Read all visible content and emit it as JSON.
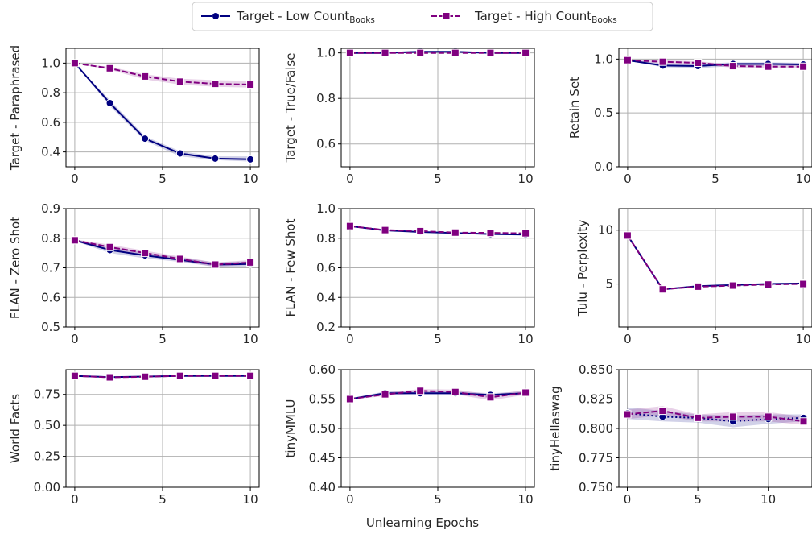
{
  "legend": {
    "items": [
      {
        "name": "Target - Low Count",
        "subscript": "Books",
        "color": "#000080",
        "marker": "circle",
        "dash": "solid"
      },
      {
        "name": "Target - High Count",
        "subscript": "Books",
        "color": "#800080",
        "marker": "square",
        "dash": "dashed"
      }
    ]
  },
  "shared_xlabel": "Unlearning Epochs",
  "chart_data": [
    {
      "type": "line",
      "ylabel": "Target - Paraphrased",
      "xlim": [
        -0.5,
        10.5
      ],
      "ylim": [
        0.3,
        1.1
      ],
      "xticks": [
        0,
        5,
        10
      ],
      "yticks": [
        0.4,
        0.6,
        0.8,
        1.0
      ],
      "ytick_labels": [
        "0.4",
        "0.6",
        "0.8",
        "1.0"
      ],
      "grid": true,
      "x": [
        0,
        2,
        4,
        6,
        8,
        10
      ],
      "series": [
        {
          "name": "Target - Low Count",
          "values": [
            1.0,
            0.73,
            0.49,
            0.39,
            0.355,
            0.35
          ],
          "band": [
            [
              1.0,
              1.0
            ],
            [
              0.71,
              0.75
            ],
            [
              0.475,
              0.505
            ],
            [
              0.37,
              0.405
            ],
            [
              0.345,
              0.37
            ],
            [
              0.335,
              0.37
            ]
          ]
        },
        {
          "name": "Target - High Count",
          "values": [
            1.0,
            0.965,
            0.91,
            0.875,
            0.86,
            0.855
          ],
          "band": [
            [
              1.0,
              1.0
            ],
            [
              0.955,
              0.975
            ],
            [
              0.89,
              0.925
            ],
            [
              0.855,
              0.895
            ],
            [
              0.84,
              0.885
            ],
            [
              0.835,
              0.88
            ]
          ]
        }
      ]
    },
    {
      "type": "line",
      "ylabel": "Target - True/False",
      "xlim": [
        -0.5,
        10.5
      ],
      "ylim": [
        0.5,
        1.02
      ],
      "xticks": [
        0,
        5,
        10
      ],
      "yticks": [
        0.6,
        0.8,
        1.0
      ],
      "ytick_labels": [
        "0.6",
        "0.8",
        "1.0"
      ],
      "grid": true,
      "x": [
        0,
        2,
        4,
        6,
        8,
        10
      ],
      "series": [
        {
          "name": "Target - Low Count",
          "values": [
            1.0,
            1.0,
            1.005,
            1.005,
            1.0,
            1.0
          ],
          "band": null
        },
        {
          "name": "Target - High Count",
          "values": [
            1.0,
            1.0,
            1.0,
            1.0,
            1.0,
            1.0
          ],
          "band": null
        }
      ]
    },
    {
      "type": "line",
      "ylabel": "Retain Set",
      "xlim": [
        -0.5,
        10.5
      ],
      "ylim": [
        0.0,
        1.1
      ],
      "xticks": [
        0,
        5,
        10
      ],
      "yticks": [
        0.0,
        0.5,
        1.0
      ],
      "ytick_labels": [
        "0.0",
        "0.5",
        "1.0"
      ],
      "grid": true,
      "x": [
        0,
        2,
        4,
        6,
        8,
        10
      ],
      "series": [
        {
          "name": "Target - Low Count",
          "values": [
            0.99,
            0.94,
            0.935,
            0.955,
            0.955,
            0.95
          ],
          "band": [
            [
              0.985,
              0.995
            ],
            [
              0.925,
              0.96
            ],
            [
              0.915,
              0.955
            ],
            [
              0.935,
              0.97
            ],
            [
              0.94,
              0.97
            ],
            [
              0.935,
              0.965
            ]
          ]
        },
        {
          "name": "Target - High Count",
          "values": [
            0.99,
            0.975,
            0.965,
            0.935,
            0.93,
            0.93
          ],
          "band": [
            [
              0.985,
              0.995
            ],
            [
              0.96,
              0.99
            ],
            [
              0.95,
              0.98
            ],
            [
              0.92,
              0.95
            ],
            [
              0.915,
              0.945
            ],
            [
              0.915,
              0.945
            ]
          ]
        }
      ]
    },
    {
      "type": "line",
      "ylabel": "FLAN - Zero Shot",
      "xlim": [
        -0.5,
        10.5
      ],
      "ylim": [
        0.5,
        0.9
      ],
      "xticks": [
        0,
        5,
        10
      ],
      "yticks": [
        0.5,
        0.6,
        0.7,
        0.8,
        0.9
      ],
      "ytick_labels": [
        "0.5",
        "0.6",
        "0.7",
        "0.8",
        "0.9"
      ],
      "grid": true,
      "x": [
        0,
        2,
        4,
        6,
        8,
        10
      ],
      "series": [
        {
          "name": "Target - Low Count",
          "values": [
            0.793,
            0.76,
            0.742,
            0.727,
            0.711,
            0.713
          ],
          "band": [
            [
              0.79,
              0.796
            ],
            [
              0.75,
              0.77
            ],
            [
              0.732,
              0.752
            ],
            [
              0.72,
              0.735
            ],
            [
              0.703,
              0.718
            ],
            [
              0.703,
              0.722
            ]
          ]
        },
        {
          "name": "Target - High Count",
          "values": [
            0.793,
            0.77,
            0.75,
            0.73,
            0.711,
            0.718
          ],
          "band": [
            [
              0.79,
              0.796
            ],
            [
              0.762,
              0.778
            ],
            [
              0.742,
              0.758
            ],
            [
              0.722,
              0.738
            ],
            [
              0.704,
              0.718
            ],
            [
              0.71,
              0.726
            ]
          ]
        }
      ]
    },
    {
      "type": "line",
      "ylabel": "FLAN - Few Shot",
      "xlim": [
        -0.5,
        10.5
      ],
      "ylim": [
        0.2,
        1.0
      ],
      "xticks": [
        0,
        5,
        10
      ],
      "yticks": [
        0.2,
        0.4,
        0.6,
        0.8,
        1.0
      ],
      "ytick_labels": [
        "0.2",
        "0.4",
        "0.6",
        "0.8",
        "1.0"
      ],
      "grid": true,
      "x": [
        0,
        2,
        4,
        6,
        8,
        10
      ],
      "series": [
        {
          "name": "Target - Low Count",
          "values": [
            0.882,
            0.853,
            0.842,
            0.835,
            0.828,
            0.825
          ],
          "band": null
        },
        {
          "name": "Target - High Count",
          "values": [
            0.882,
            0.855,
            0.848,
            0.838,
            0.836,
            0.833
          ],
          "band": null
        }
      ]
    },
    {
      "type": "line",
      "ylabel": "Tulu - Perplexity",
      "xlim": [
        -0.5,
        10.5
      ],
      "ylim": [
        1.0,
        12.0
      ],
      "xticks": [
        0,
        5,
        10
      ],
      "yticks": [
        5,
        10
      ],
      "ytick_labels": [
        "5",
        "10"
      ],
      "grid": true,
      "x": [
        0,
        2,
        4,
        6,
        8,
        10
      ],
      "series": [
        {
          "name": "Target - Low Count",
          "values": [
            9.5,
            4.5,
            4.8,
            4.9,
            5.0,
            5.05
          ],
          "band": null
        },
        {
          "name": "Target - High Count",
          "values": [
            9.5,
            4.5,
            4.75,
            4.85,
            4.95,
            5.0
          ],
          "band": null
        }
      ]
    },
    {
      "type": "line",
      "ylabel": "World Facts",
      "xlim": [
        -0.5,
        10.5
      ],
      "ylim": [
        0.0,
        0.95
      ],
      "xticks": [
        0,
        5,
        10
      ],
      "yticks": [
        0.0,
        0.25,
        0.5,
        0.75
      ],
      "ytick_labels": [
        "0.00",
        "0.25",
        "0.50",
        "0.75"
      ],
      "grid": true,
      "x": [
        0,
        2,
        4,
        6,
        8,
        10
      ],
      "series": [
        {
          "name": "Target - Low Count",
          "values": [
            0.9,
            0.89,
            0.895,
            0.9,
            0.9,
            0.9
          ],
          "band": null
        },
        {
          "name": "Target - High Count",
          "values": [
            0.9,
            0.888,
            0.893,
            0.9,
            0.9,
            0.9
          ],
          "band": null
        }
      ]
    },
    {
      "type": "line",
      "ylabel": "tinyMMLU",
      "xlim": [
        -0.5,
        10.5
      ],
      "ylim": [
        0.4,
        0.6
      ],
      "xticks": [
        0,
        5,
        10
      ],
      "yticks": [
        0.4,
        0.45,
        0.5,
        0.55,
        0.6
      ],
      "ytick_labels": [
        "0.40",
        "0.45",
        "0.50",
        "0.55",
        "0.60"
      ],
      "grid": true,
      "x": [
        0,
        2,
        4,
        6,
        8,
        10
      ],
      "series": [
        {
          "name": "Target - Low Count",
          "values": [
            0.55,
            0.56,
            0.56,
            0.56,
            0.557,
            0.56
          ],
          "band": [
            [
              0.549,
              0.551
            ],
            [
              0.557,
              0.563
            ],
            [
              0.557,
              0.563
            ],
            [
              0.557,
              0.563
            ],
            [
              0.554,
              0.56
            ],
            [
              0.557,
              0.563
            ]
          ]
        },
        {
          "name": "Target - High Count",
          "values": [
            0.55,
            0.558,
            0.564,
            0.562,
            0.553,
            0.561
          ],
          "band": [
            [
              0.549,
              0.551
            ],
            [
              0.555,
              0.561
            ],
            [
              0.56,
              0.567
            ],
            [
              0.558,
              0.566
            ],
            [
              0.548,
              0.558
            ],
            [
              0.557,
              0.565
            ]
          ]
        }
      ]
    },
    {
      "type": "line",
      "ylabel": "tinyHellaswag",
      "xlim": [
        -0.6,
        13.1
      ],
      "ylim": [
        0.75,
        0.85
      ],
      "xticks": [
        0,
        5,
        10
      ],
      "yticks": [
        0.75,
        0.775,
        0.8,
        0.825,
        0.85
      ],
      "ytick_labels": [
        "0.750",
        "0.775",
        "0.800",
        "0.825",
        "0.850"
      ],
      "grid": true,
      "x": [
        0,
        2.5,
        5,
        7.5,
        10,
        12.5
      ],
      "series": [
        {
          "name": "Target - Low Count",
          "values": [
            0.813,
            0.81,
            0.809,
            0.806,
            0.808,
            0.809
          ],
          "band": [
            [
              0.808,
              0.818
            ],
            [
              0.806,
              0.815
            ],
            [
              0.805,
              0.812
            ],
            [
              0.801,
              0.811
            ],
            [
              0.804,
              0.812
            ],
            [
              0.806,
              0.812
            ]
          ]
        },
        {
          "name": "Target - High Count",
          "values": [
            0.812,
            0.815,
            0.809,
            0.81,
            0.81,
            0.806
          ],
          "band": [
            [
              0.808,
              0.816
            ],
            [
              0.811,
              0.819
            ],
            [
              0.806,
              0.812
            ],
            [
              0.806,
              0.814
            ],
            [
              0.806,
              0.814
            ],
            [
              0.803,
              0.81
            ]
          ]
        }
      ]
    }
  ]
}
